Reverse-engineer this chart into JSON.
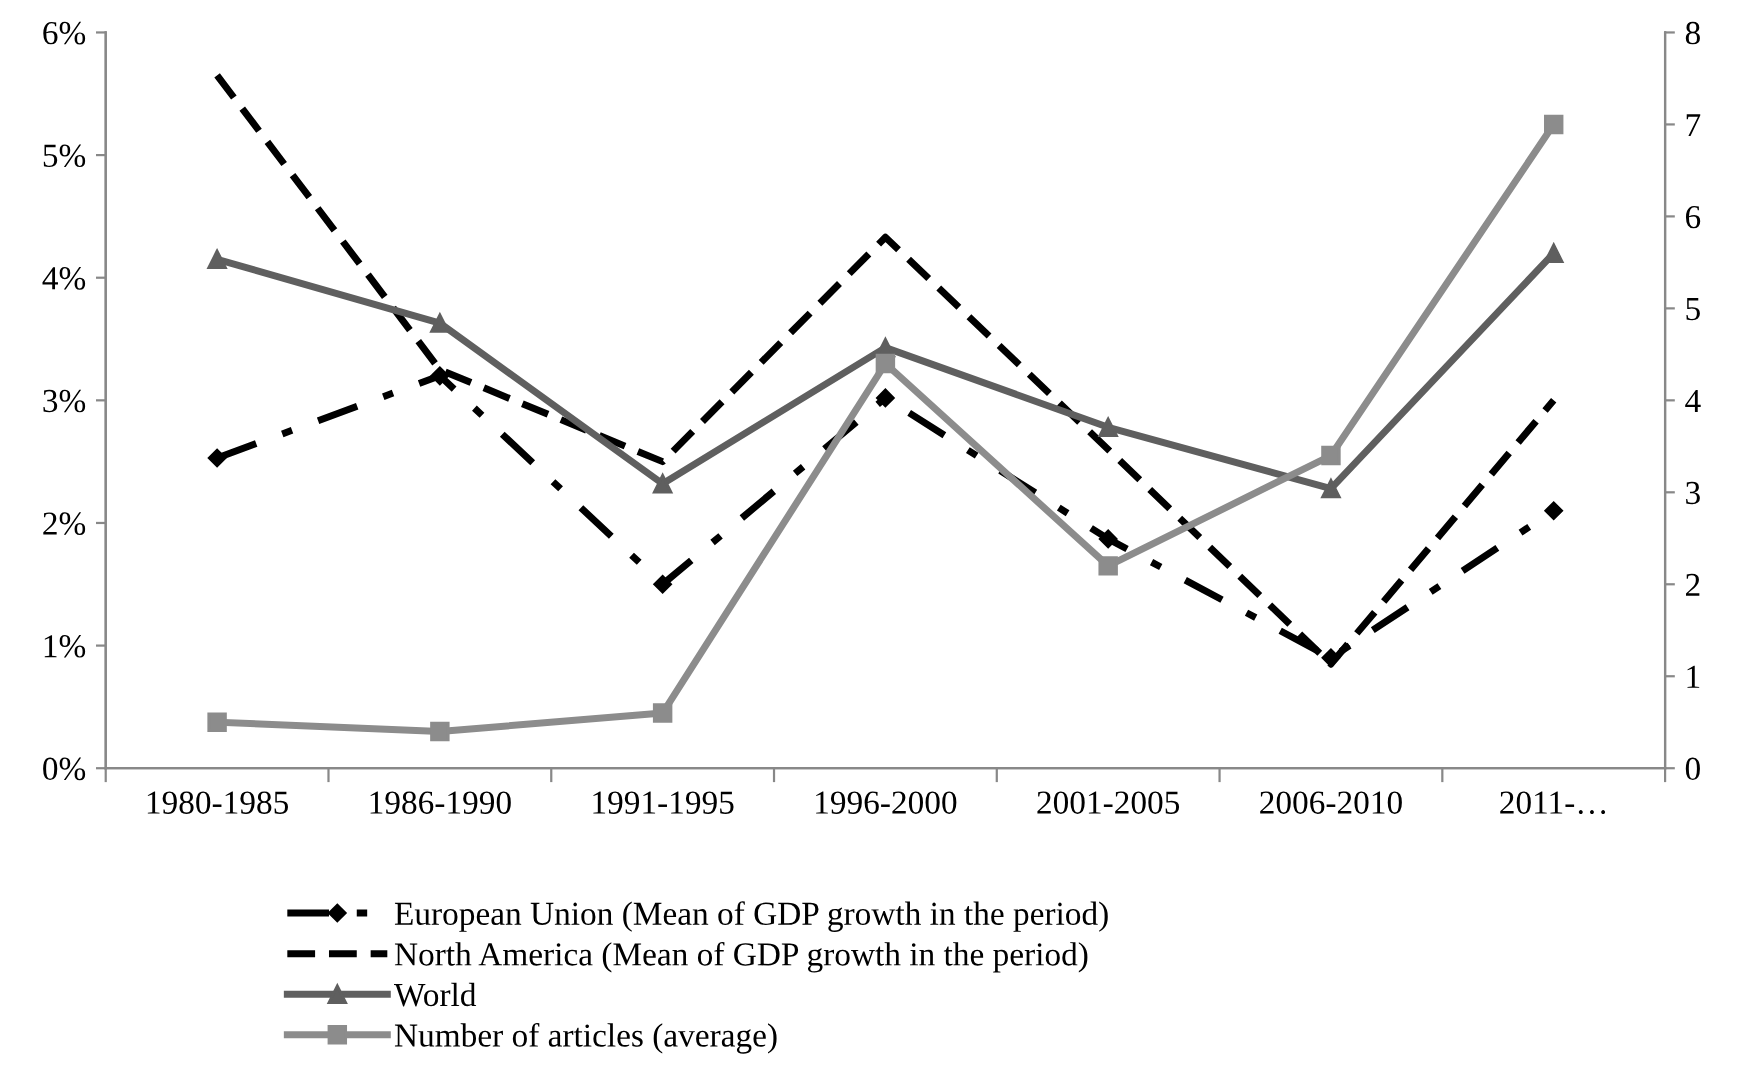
{
  "chart_data": {
    "type": "line",
    "categories": [
      "1980-1985",
      "1986-1990",
      "1991-1995",
      "1996-2000",
      "2001-2005",
      "2006-2010",
      "2011-…"
    ],
    "ylim": [
      0,
      6
    ],
    "yticks": [
      {
        "value": 0,
        "label": "0%"
      },
      {
        "value": 1,
        "label": "1%"
      },
      {
        "value": 2,
        "label": "2%"
      },
      {
        "value": 3,
        "label": "3%"
      },
      {
        "value": 4,
        "label": "4%"
      },
      {
        "value": 5,
        "label": "5%"
      },
      {
        "value": 6,
        "label": "6%"
      }
    ],
    "y2lim": [
      0,
      8
    ],
    "y2ticks": [
      0,
      1,
      2,
      3,
      4,
      5,
      6,
      7,
      8
    ],
    "grid": false,
    "legend": "bottom",
    "series": [
      {
        "name": "European Union (Mean of GDP growth in the period)",
        "color": "#000000",
        "line_style": "dashdot",
        "marker": "diamond",
        "values": [
          2.53,
          3.2,
          1.5,
          3.02,
          1.87,
          0.9,
          2.1
        ]
      },
      {
        "name": "North America (Mean of GDP growth in the period)",
        "color": "#000000",
        "line_style": "dashed",
        "marker": "none",
        "values": [
          5.65,
          3.25,
          2.5,
          4.33,
          2.6,
          0.85,
          3.0
        ]
      },
      {
        "name": "World",
        "color": "#5f5f5f",
        "line_style": "solid",
        "marker": "triangle",
        "values": [
          4.15,
          3.63,
          2.32,
          3.43,
          2.78,
          2.28,
          4.2
        ]
      },
      {
        "name": "Number of articles (average)",
        "color": "#8c8c8c",
        "line_style": "solid",
        "marker": "square",
        "axis": "y2",
        "values": [
          0.5,
          0.4,
          0.6,
          4.4,
          2.2,
          3.4,
          7.0
        ]
      }
    ]
  }
}
